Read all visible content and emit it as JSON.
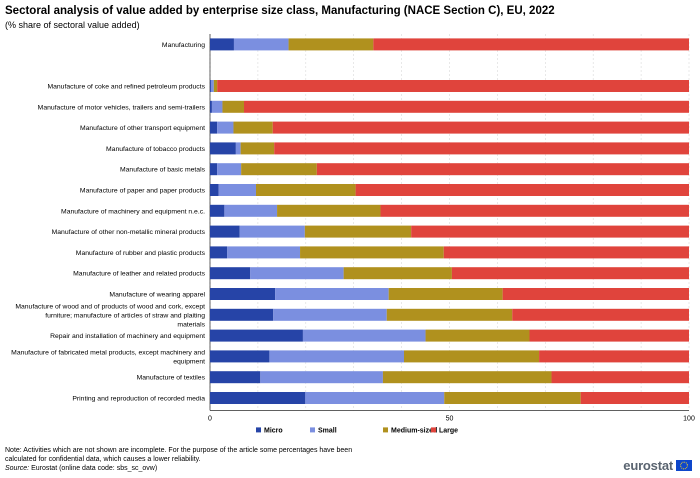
{
  "chart_data": {
    "type": "bar",
    "orientation": "horizontal",
    "stacked": true,
    "title": "Sectoral analysis of value added by enterprise size class, Manufacturing (NACE Section C), EU, 2022",
    "subtitle": "(% share of sectoral value added)",
    "xlim": [
      0,
      100
    ],
    "x_ticks": [
      "0",
      "50",
      "100"
    ],
    "grid": true,
    "legend_position": "bottom",
    "categories": [
      "Manufacturing",
      "",
      "Manufacture of coke and refined petroleum products",
      "Manufacture of motor vehicles, trailers and semi-trailers",
      "Manufacture of other transport equipment",
      "Manufacture of tobacco products",
      "Manufacture of basic metals",
      "Manufacture of paper and paper products",
      "Manufacture of machinery and equipment n.e.c.",
      "Manufacture of other non-metallic mineral products",
      "Manufacture of rubber and plastic products",
      "Manufacture of leather and related products",
      "Manufacture of wearing apparel",
      "Manufacture of wood and of products of wood and cork, except furniture; manufacture of articles of straw and plaiting materials",
      "Repair and installation of machinery and equipment",
      "Manufacture of fabricated metal products, except machinery and equipment",
      "Manufacture of textiles",
      "Printing and reproduction of recorded media"
    ],
    "series": [
      {
        "name": "Micro",
        "color": "#2644a7",
        "values": [
          5.0,
          null,
          0.2,
          0.4,
          1.5,
          5.4,
          1.5,
          1.8,
          3.0,
          6.2,
          3.6,
          8.4,
          13.6,
          13.2,
          19.4,
          12.4,
          10.5,
          19.9
        ]
      },
      {
        "name": "Small",
        "color": "#7b8fe0",
        "values": [
          11.4,
          null,
          0.6,
          2.2,
          3.4,
          1.0,
          5.0,
          7.8,
          11.0,
          13.6,
          15.2,
          19.5,
          23.7,
          23.7,
          25.6,
          28.1,
          25.6,
          29.0
        ]
      },
      {
        "name": "Medium-sized",
        "color": "#b0911e",
        "values": [
          17.7,
          null,
          0.7,
          4.5,
          8.2,
          7.0,
          15.8,
          20.8,
          21.6,
          22.2,
          30.0,
          22.6,
          23.8,
          26.2,
          21.7,
          28.2,
          35.2,
          28.5
        ]
      },
      {
        "name": "Large",
        "color": "#e0443c",
        "values": [
          65.9,
          null,
          98.5,
          92.9,
          86.9,
          86.6,
          77.7,
          69.6,
          64.4,
          58.0,
          51.2,
          49.5,
          38.9,
          36.9,
          33.3,
          31.3,
          28.7,
          22.6
        ]
      }
    ]
  },
  "footer": {
    "note": "Note: Activities which are not shown are incomplete. For the purpose of the article some percentages have been calculated for confidential data, which causes a lower reliability.",
    "source_label": "Source:",
    "source_text": "Eurostat (online data code: sbs_sc_ovw)",
    "logo": "eurostat"
  }
}
